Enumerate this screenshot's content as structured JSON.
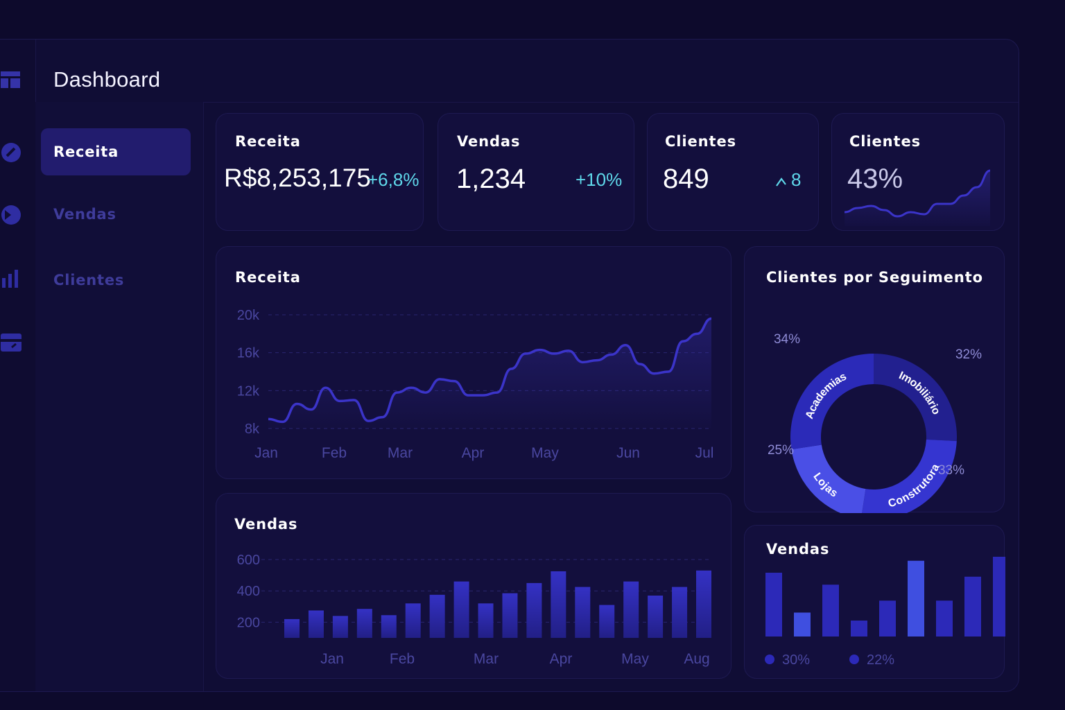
{
  "header": {
    "title": "Dashboard"
  },
  "nav": {
    "items": [
      {
        "label": "Receita",
        "active": true
      },
      {
        "label": "Vendas",
        "active": false
      },
      {
        "label": "Clientes",
        "active": false
      }
    ]
  },
  "kpis": [
    {
      "title": "Receita",
      "value": "R$8,253,175",
      "delta": "+6,8%"
    },
    {
      "title": "Vendas",
      "value": "1,234",
      "delta": "+10%"
    },
    {
      "title": "Clientes",
      "value": "849",
      "delta": "8"
    },
    {
      "title": "Clientes",
      "value": "43%"
    }
  ],
  "colors": {
    "background": "#0d0a2c",
    "card": "#130f3d",
    "accent": "#3a36c9",
    "line": "#3b34c9",
    "delta": "#5fd8ea",
    "donut": [
      "#2b2ab8",
      "#22208f",
      "#3535d0",
      "#4a4fe6"
    ]
  },
  "charts": {
    "revenue": {
      "title": "Receita",
      "chart_data": {
        "type": "area",
        "x_ticks": [
          "Jan",
          "Feb",
          "Mar",
          "Apr",
          "May",
          "Jun",
          "Jul"
        ],
        "y_ticks": [
          "20k",
          "16k",
          "12k",
          "8k"
        ],
        "ylim": [
          8000,
          20000
        ],
        "grid": true,
        "values": [
          9000,
          8700,
          10600,
          10000,
          12300,
          10900,
          11000,
          8800,
          9200,
          11800,
          12300,
          11800,
          13200,
          13000,
          11500,
          11500,
          11800,
          14300,
          15900,
          16300,
          15900,
          16200,
          15000,
          15200,
          15800,
          16800,
          14800,
          13800,
          14000,
          17200,
          18000,
          19600
        ]
      }
    },
    "sales": {
      "title": "Vendas",
      "chart_data": {
        "type": "bar",
        "x_ticks": [
          "Jan",
          "Feb",
          "Mar",
          "Apr",
          "May",
          "Aug"
        ],
        "y_ticks": [
          "600",
          "400",
          "200"
        ],
        "ylim": [
          100,
          600
        ],
        "grid": true,
        "values": [
          220,
          275,
          240,
          285,
          245,
          320,
          375,
          460,
          320,
          385,
          450,
          525,
          425,
          310,
          460,
          370,
          425,
          530
        ]
      }
    },
    "segments": {
      "title": "Clientes por Seguimento",
      "chart_data": {
        "type": "pie",
        "labels": [
          "Academias",
          "Imobiliário",
          "Construtora",
          "Lojas"
        ],
        "values": [
          34,
          32,
          33,
          25
        ],
        "value_labels": [
          "34%",
          "32%",
          "33%",
          "25%"
        ]
      }
    },
    "sales_small": {
      "title": "Vendas",
      "chart_data": {
        "type": "bar",
        "values": [
          8,
          3,
          6.5,
          2,
          4.5,
          9.5,
          4.5,
          7.5,
          10
        ],
        "highlight": [
          false,
          true,
          false,
          false,
          false,
          true,
          false,
          false,
          false
        ],
        "legend": [
          {
            "label": "30%",
            "color": "#2c29b8"
          },
          {
            "label": "22%",
            "color": "#2c29b8"
          }
        ]
      }
    },
    "clients_spark": {
      "chart_data": {
        "type": "line",
        "values": [
          4,
          5,
          5.5,
          4.5,
          3,
          4,
          3.5,
          6,
          6,
          8,
          10,
          14
        ]
      }
    }
  }
}
